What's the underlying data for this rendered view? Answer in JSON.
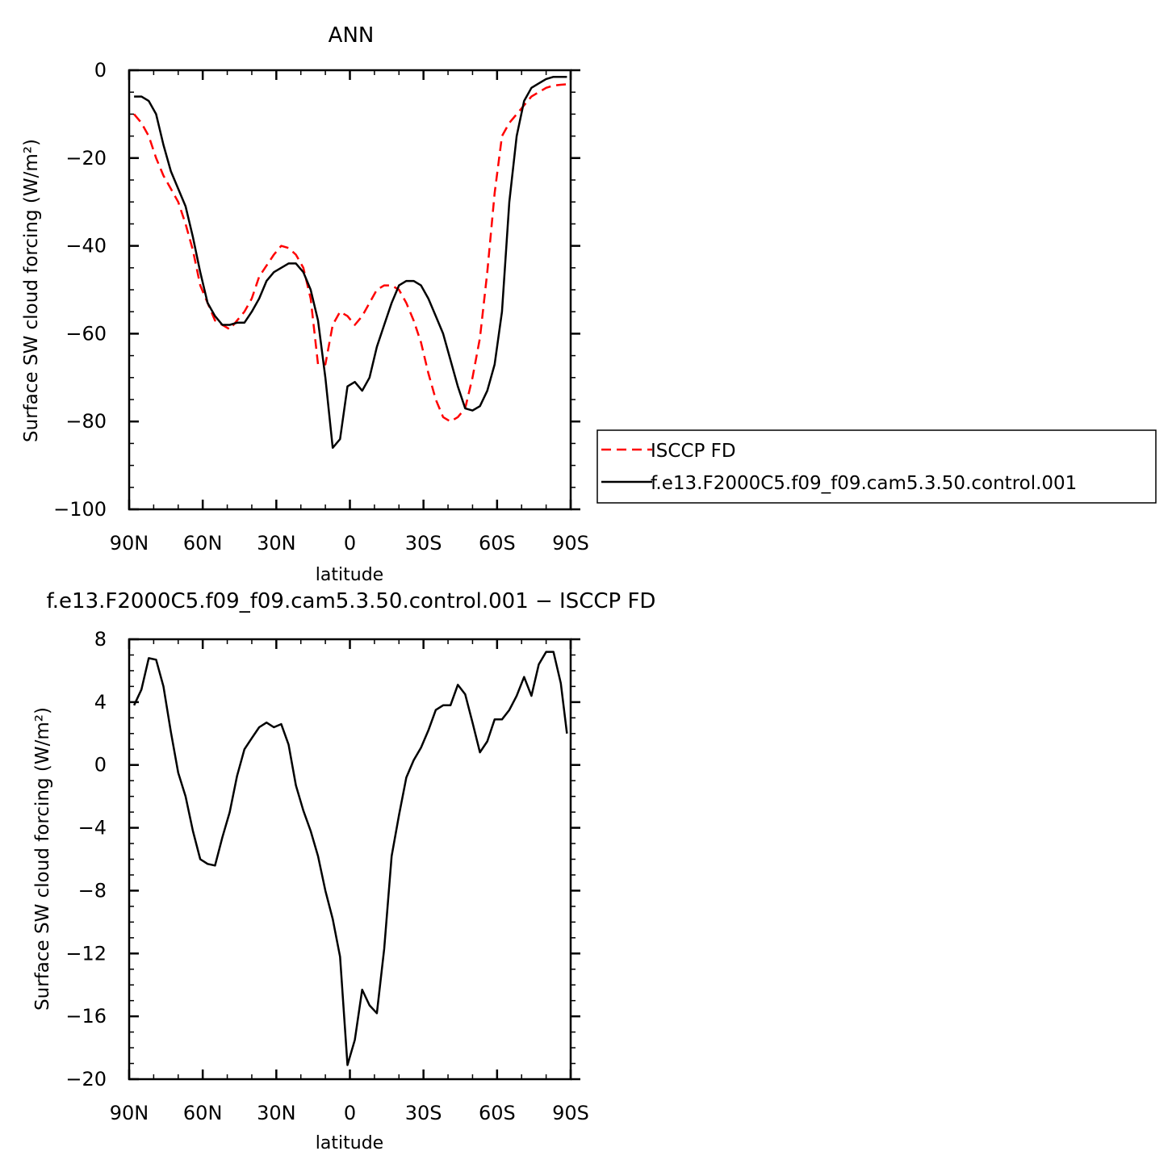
{
  "chart_data": [
    {
      "type": "line",
      "title": "ANN",
      "xlabel": "latitude",
      "ylabel": "Surface SW cloud forcing (W/m²)",
      "xlim": [
        -90,
        90
      ],
      "ylim": [
        -100,
        0
      ],
      "x_ticks": [
        -90,
        -60,
        -30,
        0,
        30,
        60,
        90
      ],
      "x_tick_labels": [
        "90N",
        "60N",
        "30N",
        "0",
        "30S",
        "60S",
        "90S"
      ],
      "y_ticks": [
        0,
        -20,
        -40,
        -60,
        -80,
        -100
      ],
      "y_tick_labels": [
        "0",
        "−20",
        "−40",
        "−60",
        "−80",
        "−100"
      ],
      "grid": false,
      "legend_position": "right",
      "series": [
        {
          "name": "ISCCP FD",
          "color": "#ff0000",
          "style": "dashed",
          "x": [
            -88,
            -85,
            -82,
            -79,
            -76,
            -73,
            -70,
            -67,
            -64,
            -61,
            -58,
            -55,
            -52,
            -49,
            -46,
            -43,
            -40,
            -37,
            -34,
            -31,
            -28,
            -25,
            -22,
            -19,
            -16,
            -13,
            -10,
            -7,
            -4,
            -1,
            2,
            5,
            8,
            11,
            14,
            17,
            20,
            23,
            26,
            29,
            32,
            35,
            38,
            41,
            44,
            47,
            50,
            53,
            56,
            59,
            62,
            65,
            68,
            71,
            74,
            77,
            80,
            83,
            86,
            88.5
          ],
          "y": [
            -10,
            -12,
            -15,
            -20,
            -24,
            -27,
            -30,
            -35,
            -41,
            -49,
            -53,
            -57,
            -58,
            -59,
            -57,
            -55,
            -52,
            -47,
            -44.5,
            -42,
            -40,
            -40.5,
            -42,
            -45,
            -52,
            -67,
            -67,
            -58,
            -55,
            -56,
            -58,
            -56,
            -53,
            -50,
            -49,
            -49,
            -50,
            -53,
            -57,
            -62,
            -69,
            -75,
            -79,
            -80,
            -79,
            -77,
            -70,
            -61,
            -46,
            -28,
            -15,
            -12,
            -10,
            -8,
            -6,
            -5,
            -4,
            -3.5,
            -3.3,
            -3.2
          ]
        },
        {
          "name": "f.e13.F2000C5.f09_f09.cam5.3.50.control.001",
          "color": "#000000",
          "style": "solid",
          "x": [
            -88,
            -85,
            -82,
            -79,
            -76,
            -73,
            -70,
            -67,
            -64,
            -61,
            -58,
            -55,
            -52,
            -49,
            -46,
            -43,
            -40,
            -37,
            -34,
            -31,
            -28,
            -25,
            -22,
            -19,
            -16,
            -13,
            -10,
            -7,
            -4,
            -1,
            2,
            5,
            8,
            11,
            14,
            17,
            20,
            23,
            26,
            29,
            32,
            35,
            38,
            41,
            44,
            47,
            50,
            53,
            56,
            59,
            62,
            65,
            68,
            71,
            74,
            77,
            80,
            83,
            86,
            88.5
          ],
          "y": [
            -6,
            -6,
            -7,
            -10,
            -17,
            -23,
            -27,
            -31,
            -38,
            -46,
            -53,
            -56,
            -58,
            -58,
            -57.5,
            -57.5,
            -55,
            -52,
            -48,
            -46,
            -45,
            -44,
            -44,
            -46,
            -50,
            -57,
            -70,
            -86,
            -84,
            -72,
            -71,
            -73,
            -70,
            -63,
            -58,
            -53,
            -49,
            -48,
            -48,
            -49,
            -52,
            -56,
            -60,
            -66,
            -72,
            -77,
            -77.5,
            -76.5,
            -73,
            -67,
            -55,
            -30,
            -15,
            -7,
            -4,
            -3,
            -2,
            -1.5,
            -1.5,
            -1.5
          ]
        }
      ]
    },
    {
      "type": "line",
      "title": "f.e13.F2000C5.f09_f09.cam5.3.50.control.001 − ISCCP FD",
      "xlabel": "latitude",
      "ylabel": "Surface SW cloud forcing (W/m²)",
      "xlim": [
        -90,
        90
      ],
      "ylim": [
        -20,
        8
      ],
      "x_ticks": [
        -90,
        -60,
        -30,
        0,
        30,
        60,
        90
      ],
      "x_tick_labels": [
        "90N",
        "60N",
        "30N",
        "0",
        "30S",
        "60S",
        "90S"
      ],
      "y_ticks": [
        8,
        4,
        0,
        -4,
        -8,
        -12,
        -16,
        -20
      ],
      "y_tick_labels": [
        "8",
        "4",
        "0",
        "−4",
        "−8",
        "−12",
        "−16",
        "−20"
      ],
      "grid": false,
      "series": [
        {
          "color": "#000000",
          "style": "solid",
          "x": [
            -88,
            -85,
            -82,
            -79,
            -76,
            -73,
            -70,
            -67,
            -64,
            -61,
            -58,
            -55,
            -52,
            -49,
            -46,
            -43,
            -40,
            -37,
            -34,
            -31,
            -28,
            -25,
            -22,
            -19,
            -16,
            -13,
            -10,
            -7,
            -4,
            -1,
            2,
            5,
            8,
            11,
            14,
            17,
            20,
            23,
            26,
            29,
            32,
            35,
            38,
            41,
            44,
            47,
            50,
            53,
            56,
            59,
            62,
            65,
            68,
            71,
            74,
            77,
            80,
            83,
            86,
            88.5
          ],
          "y": [
            3.8,
            4.8,
            6.8,
            6.7,
            5.0,
            2.1,
            -0.5,
            -2.0,
            -4.2,
            -6.0,
            -6.3,
            -6.4,
            -4.6,
            -3.0,
            -0.7,
            1.0,
            1.7,
            2.4,
            2.7,
            2.4,
            2.6,
            1.3,
            -1.3,
            -2.9,
            -4.2,
            -5.8,
            -8.0,
            -9.8,
            -12.2,
            -19.1,
            -17.5,
            -14.3,
            -15.3,
            -15.8,
            -11.7,
            -5.8,
            -3.2,
            -0.8,
            0.3,
            1.1,
            2.2,
            3.5,
            3.8,
            3.8,
            5.1,
            4.5,
            2.7,
            0.8,
            1.5,
            2.9,
            2.9,
            3.5,
            4.4,
            5.6,
            4.4,
            6.4,
            7.2,
            7.2,
            5.2,
            2.0
          ]
        }
      ]
    }
  ]
}
